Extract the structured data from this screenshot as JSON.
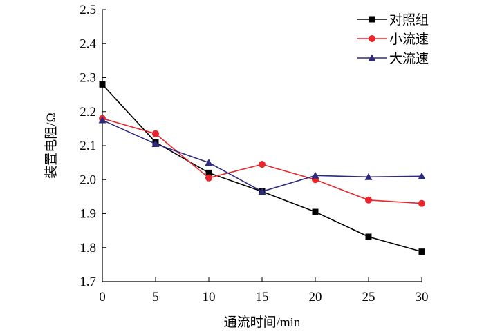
{
  "chart_data": {
    "type": "line",
    "xlabel": "通流时间/min",
    "ylabel": "装置电阻/Ω",
    "xlim": [
      0,
      30
    ],
    "ylim": [
      1.7,
      2.5
    ],
    "xticks": [
      0,
      5,
      10,
      15,
      20,
      25,
      30
    ],
    "yticks": [
      1.7,
      1.8,
      1.9,
      2.0,
      2.1,
      2.2,
      2.3,
      2.4,
      2.5
    ],
    "x": [
      0,
      5,
      10,
      15,
      20,
      25,
      30
    ],
    "legend_position": "top-right",
    "series": [
      {
        "name": "对照组",
        "color": "#000000",
        "marker": "square",
        "values": [
          2.28,
          2.11,
          2.02,
          1.965,
          1.905,
          1.832,
          1.788
        ]
      },
      {
        "name": "小流速",
        "color": "#e8262b",
        "marker": "circle",
        "values": [
          2.18,
          2.135,
          2.005,
          2.045,
          2.0,
          1.94,
          1.93
        ]
      },
      {
        "name": "大流速",
        "color": "#2e2a7e",
        "marker": "triangle",
        "values": [
          2.175,
          2.105,
          2.05,
          1.965,
          2.012,
          2.008,
          2.01
        ]
      }
    ]
  }
}
